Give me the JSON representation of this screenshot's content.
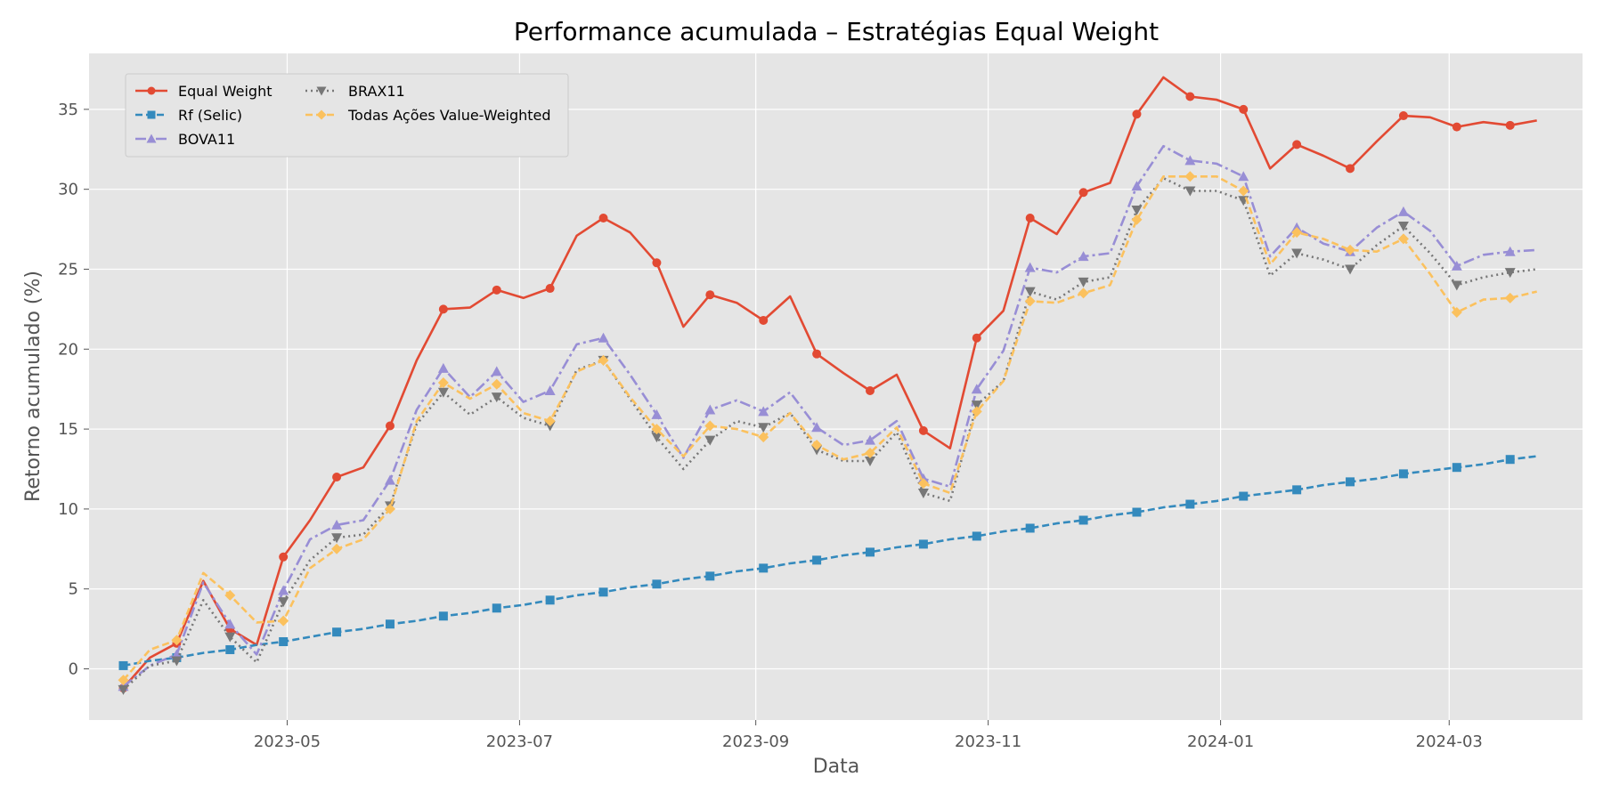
{
  "chart_data": {
    "type": "line",
    "title": "Performance acumulada – Estratégias Equal Weight",
    "xlabel": "Data",
    "ylabel": "Retorno acumulado (%)",
    "x_axis": {
      "type": "date",
      "range": [
        "2023-03-10",
        "2024-04-05"
      ],
      "ticks": [
        {
          "date": "2023-05-01",
          "label": "2023-05"
        },
        {
          "date": "2023-07-01",
          "label": "2023-07"
        },
        {
          "date": "2023-09-01",
          "label": "2023-09"
        },
        {
          "date": "2023-11-01",
          "label": "2023-11"
        },
        {
          "date": "2024-01-01",
          "label": "2024-01"
        },
        {
          "date": "2024-03-01",
          "label": "2024-03"
        }
      ]
    },
    "y_axis": {
      "range": [
        -3.2,
        38.5
      ],
      "ticks": [
        0,
        5,
        10,
        15,
        20,
        25,
        30,
        35
      ]
    },
    "grid": true,
    "legend": {
      "placement": "upper-left",
      "columns": 2
    },
    "x": [
      "2023-03-19",
      "2023-03-26",
      "2023-04-02",
      "2023-04-09",
      "2023-04-16",
      "2023-04-23",
      "2023-04-30",
      "2023-05-07",
      "2023-05-14",
      "2023-05-21",
      "2023-05-28",
      "2023-06-04",
      "2023-06-11",
      "2023-06-18",
      "2023-06-25",
      "2023-07-02",
      "2023-07-09",
      "2023-07-16",
      "2023-07-23",
      "2023-07-30",
      "2023-08-06",
      "2023-08-13",
      "2023-08-20",
      "2023-08-27",
      "2023-09-03",
      "2023-09-10",
      "2023-09-17",
      "2023-09-24",
      "2023-10-01",
      "2023-10-08",
      "2023-10-15",
      "2023-10-22",
      "2023-10-29",
      "2023-11-05",
      "2023-11-12",
      "2023-11-19",
      "2023-11-26",
      "2023-12-03",
      "2023-12-10",
      "2023-12-17",
      "2023-12-24",
      "2023-12-31",
      "2024-01-07",
      "2024-01-14",
      "2024-01-21",
      "2024-01-28",
      "2024-02-04",
      "2024-02-11",
      "2024-02-18",
      "2024-02-25",
      "2024-03-03",
      "2024-03-10",
      "2024-03-17",
      "2024-03-24"
    ],
    "series": [
      {
        "name": "Equal Weight",
        "color": "#E24A33",
        "linestyle": "solid",
        "marker": "circle",
        "markevery": 2,
        "values": [
          -1.2,
          0.7,
          1.6,
          5.5,
          2.5,
          1.5,
          7.0,
          9.3,
          12.0,
          12.6,
          15.2,
          19.3,
          22.5,
          22.6,
          23.7,
          23.2,
          23.8,
          27.1,
          28.2,
          27.3,
          25.4,
          21.4,
          23.4,
          22.9,
          21.8,
          23.3,
          19.7,
          18.5,
          17.4,
          18.4,
          14.9,
          13.8,
          20.7,
          22.4,
          28.2,
          27.2,
          29.8,
          30.4,
          34.7,
          37.0,
          35.8,
          35.6,
          35.0,
          31.3,
          32.8,
          32.1,
          31.3,
          33.0,
          34.6,
          34.5,
          33.9,
          34.2,
          34.0,
          34.3
        ]
      },
      {
        "name": "Rf (Selic)",
        "color": "#348ABD",
        "linestyle": "dashed",
        "marker": "square",
        "markevery": 2,
        "values": [
          0.2,
          0.5,
          0.7,
          1.0,
          1.2,
          1.5,
          1.7,
          2.0,
          2.3,
          2.5,
          2.8,
          3.0,
          3.3,
          3.5,
          3.8,
          4.0,
          4.3,
          4.6,
          4.8,
          5.1,
          5.3,
          5.6,
          5.8,
          6.1,
          6.3,
          6.6,
          6.8,
          7.1,
          7.3,
          7.6,
          7.8,
          8.1,
          8.3,
          8.6,
          8.8,
          9.1,
          9.3,
          9.6,
          9.8,
          10.1,
          10.3,
          10.5,
          10.8,
          11.0,
          11.2,
          11.5,
          11.7,
          11.9,
          12.2,
          12.4,
          12.6,
          12.8,
          13.1,
          13.3
        ]
      },
      {
        "name": "BOVA11",
        "color": "#988ED5",
        "linestyle": "dashdot",
        "marker": "triangle-up",
        "markevery": 2,
        "values": [
          -1.1,
          0.2,
          0.9,
          5.4,
          2.8,
          0.9,
          4.9,
          8.1,
          9.0,
          9.3,
          11.8,
          16.2,
          18.8,
          17.0,
          18.6,
          16.7,
          17.4,
          20.3,
          20.7,
          18.4,
          15.9,
          13.2,
          16.2,
          16.8,
          16.1,
          17.3,
          15.1,
          14.0,
          14.3,
          15.5,
          11.9,
          11.4,
          17.5,
          19.9,
          25.1,
          24.8,
          25.8,
          26.0,
          30.2,
          32.7,
          31.8,
          31.6,
          30.8,
          25.8,
          27.6,
          26.6,
          26.1,
          27.6,
          28.6,
          27.4,
          25.2,
          25.9,
          26.1,
          26.2
        ]
      },
      {
        "name": "BRAX11",
        "color": "#777777",
        "linestyle": "dotted",
        "marker": "triangle-down",
        "markevery": 2,
        "values": [
          -1.3,
          0.2,
          0.5,
          4.3,
          2.0,
          0.4,
          4.2,
          6.8,
          8.2,
          8.4,
          10.2,
          15.3,
          17.3,
          15.9,
          17.0,
          15.7,
          15.2,
          18.7,
          19.3,
          16.9,
          14.5,
          12.5,
          14.3,
          15.5,
          15.1,
          16.0,
          13.7,
          13.0,
          13.0,
          14.8,
          11.0,
          10.5,
          16.5,
          18.0,
          23.6,
          23.1,
          24.2,
          24.5,
          28.7,
          30.7,
          29.9,
          29.9,
          29.3,
          24.6,
          26.0,
          25.6,
          25.0,
          26.5,
          27.7,
          26.0,
          24.0,
          24.5,
          24.8,
          25.0
        ]
      },
      {
        "name": "Todas Ações Value-Weighted",
        "color": "#FBC15E",
        "linestyle": "dashed",
        "marker": "diamond",
        "markevery": 2,
        "values": [
          -0.7,
          1.2,
          1.8,
          6.0,
          4.6,
          2.9,
          3.0,
          6.3,
          7.5,
          8.1,
          10.0,
          15.5,
          17.9,
          16.9,
          17.8,
          16.0,
          15.5,
          18.6,
          19.3,
          17.0,
          15.0,
          13.3,
          15.2,
          15.0,
          14.5,
          16.0,
          14.0,
          13.1,
          13.5,
          15.1,
          11.6,
          11.0,
          16.1,
          18.0,
          23.0,
          22.9,
          23.5,
          24.0,
          28.1,
          30.8,
          30.8,
          30.8,
          29.9,
          25.3,
          27.3,
          26.9,
          26.2,
          26.1,
          26.9,
          24.7,
          22.3,
          23.1,
          23.2,
          23.6
        ]
      }
    ]
  }
}
